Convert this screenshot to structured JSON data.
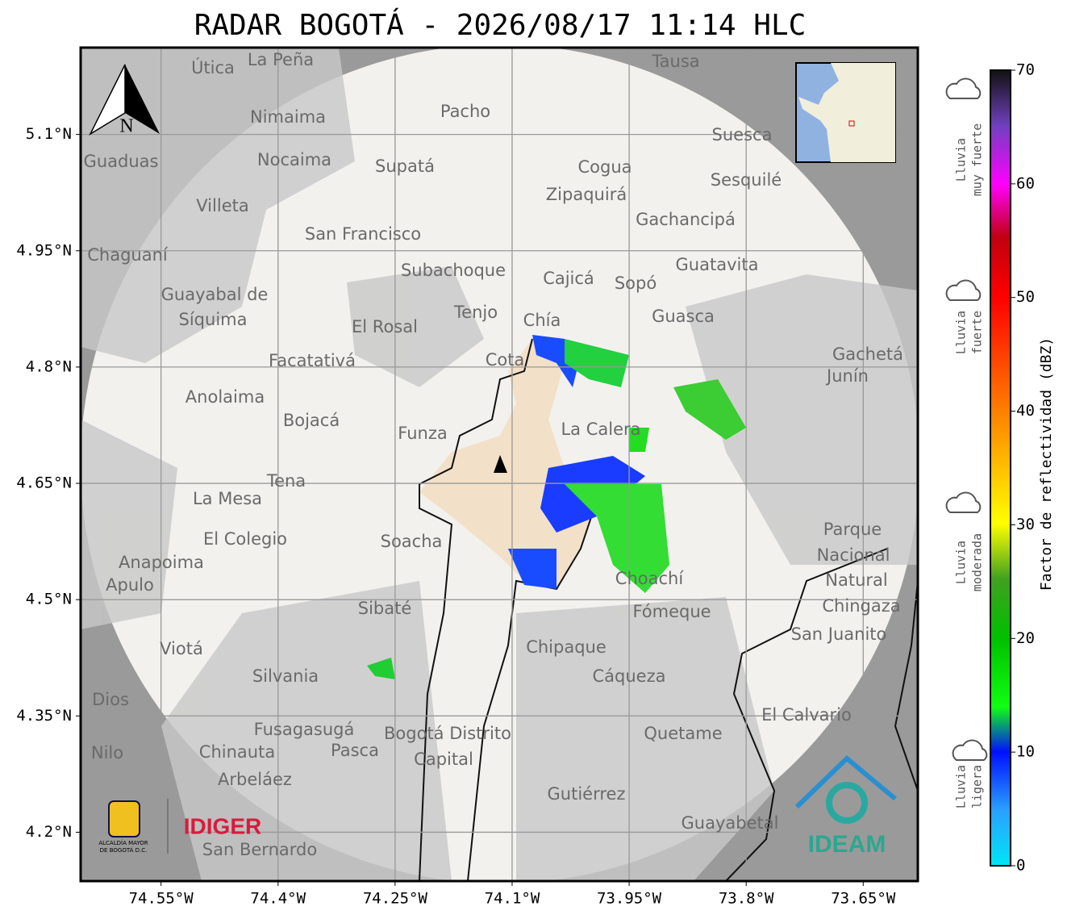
{
  "map": {
    "title": "RADAR BOGOTÁ - 2026/08/17 11:14 HLC",
    "xlim": [
      -74.653,
      -73.58
    ],
    "ylim": [
      4.137,
      5.212
    ],
    "xticks": [
      {
        "value": -74.55,
        "label": "74.55°W"
      },
      {
        "value": -74.4,
        "label": "74.4°W"
      },
      {
        "value": -74.25,
        "label": "74.25°W"
      },
      {
        "value": -74.1,
        "label": "74.1°W"
      },
      {
        "value": -73.95,
        "label": "73.95°W"
      },
      {
        "value": -73.8,
        "label": "73.8°W"
      },
      {
        "value": -73.65,
        "label": "73.65°W"
      }
    ],
    "yticks": [
      {
        "value": 5.1,
        "label": "5.1°N"
      },
      {
        "value": 4.95,
        "label": "4.95°N"
      },
      {
        "value": 4.8,
        "label": "4.8°N"
      },
      {
        "value": 4.65,
        "label": "4.65°N"
      },
      {
        "value": 4.5,
        "label": "4.5°N"
      },
      {
        "value": 4.35,
        "label": "4.35°N"
      },
      {
        "value": 4.2,
        "label": "4.2°N"
      }
    ],
    "grid": true,
    "north": "N",
    "colorbar": {
      "label": "Factor de reflectividad (dBZ)",
      "lim": [
        0,
        70
      ],
      "ticks": [
        0,
        10,
        20,
        30,
        40,
        50,
        60,
        70
      ]
    },
    "intensity": [
      [
        "Lluvia",
        "muy fuerte"
      ],
      [
        "Lluvia",
        "fuerte"
      ],
      [
        "Lluvia",
        "moderada"
      ],
      [
        "Lluvia",
        "ligera"
      ]
    ],
    "logos": {
      "alcaldia": [
        "ALCALDÍA MAYOR",
        "DE BOGOTÁ D.C."
      ],
      "idiger": "IDIGER",
      "ideam": "IDEAM"
    },
    "places": [
      "La Peña",
      "Útica",
      "Tausa",
      "Pacho",
      "Nimaima",
      "Nocaima",
      "Supatá",
      "Guaduas",
      "Suesca",
      "Cogua",
      "Sesquilé",
      "Zipaquirá",
      "Villeta",
      "Gachancipá",
      "San Francisco",
      "Chaguaní",
      "Guatavita",
      "Subachoque",
      "Cajicá",
      "Sopó",
      "Guayabal de",
      "Síquima",
      "Tenjo",
      "Chía",
      "Guasca",
      "El Rosal",
      "Facatativá",
      "Cota",
      "Gachetá",
      "Junín",
      "Anolaima",
      "Bojacá",
      "Funza",
      "La Calera",
      "Tena",
      "La Mesa",
      "Parque",
      "Nacional",
      "Natural",
      "Chingaza",
      "El Colegio",
      "Soacha",
      "Anapoima",
      "Apulo",
      "Choachí",
      "Sibaté",
      "Fómeque",
      "San Juanito",
      "Viotá",
      "Chipaque",
      "Silvania",
      "Cáqueza",
      "Dios",
      "El Calvario",
      "Fusagasugá",
      "Bogotá Distrito",
      "Capital",
      "Quetame",
      "Nilo",
      "Chinauta",
      "Pasca",
      "Arbeláez",
      "Gutiérrez",
      "Guayabetal",
      "San Bernardo"
    ]
  }
}
